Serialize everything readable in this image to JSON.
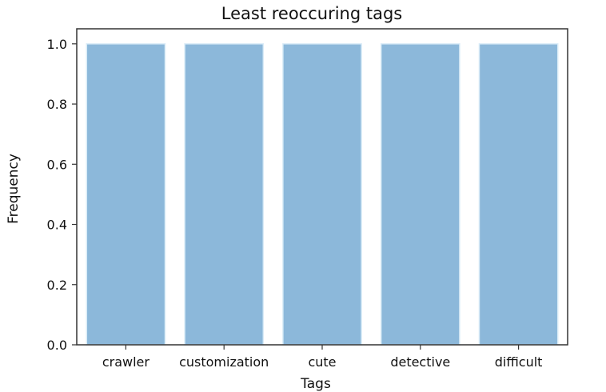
{
  "chart_data": {
    "type": "bar",
    "title": "Least reoccuring tags",
    "xlabel": "Tags",
    "ylabel": "Frequency",
    "categories": [
      "crawler",
      "customization",
      "cute",
      "detective",
      "difficult"
    ],
    "values": [
      1.0,
      1.0,
      1.0,
      1.0,
      1.0
    ],
    "ylim": [
      0,
      1.05
    ],
    "yticks": [
      0.0,
      0.2,
      0.4,
      0.6,
      0.8,
      1.0
    ],
    "ytick_labels": [
      "0.0",
      "0.2",
      "0.4",
      "0.6",
      "0.8",
      "1.0"
    ],
    "grid": false,
    "legend": "none",
    "colors": {
      "bar": "#8cb8da",
      "bar_edge": "#d9ebf7",
      "axis": "#333333"
    }
  }
}
